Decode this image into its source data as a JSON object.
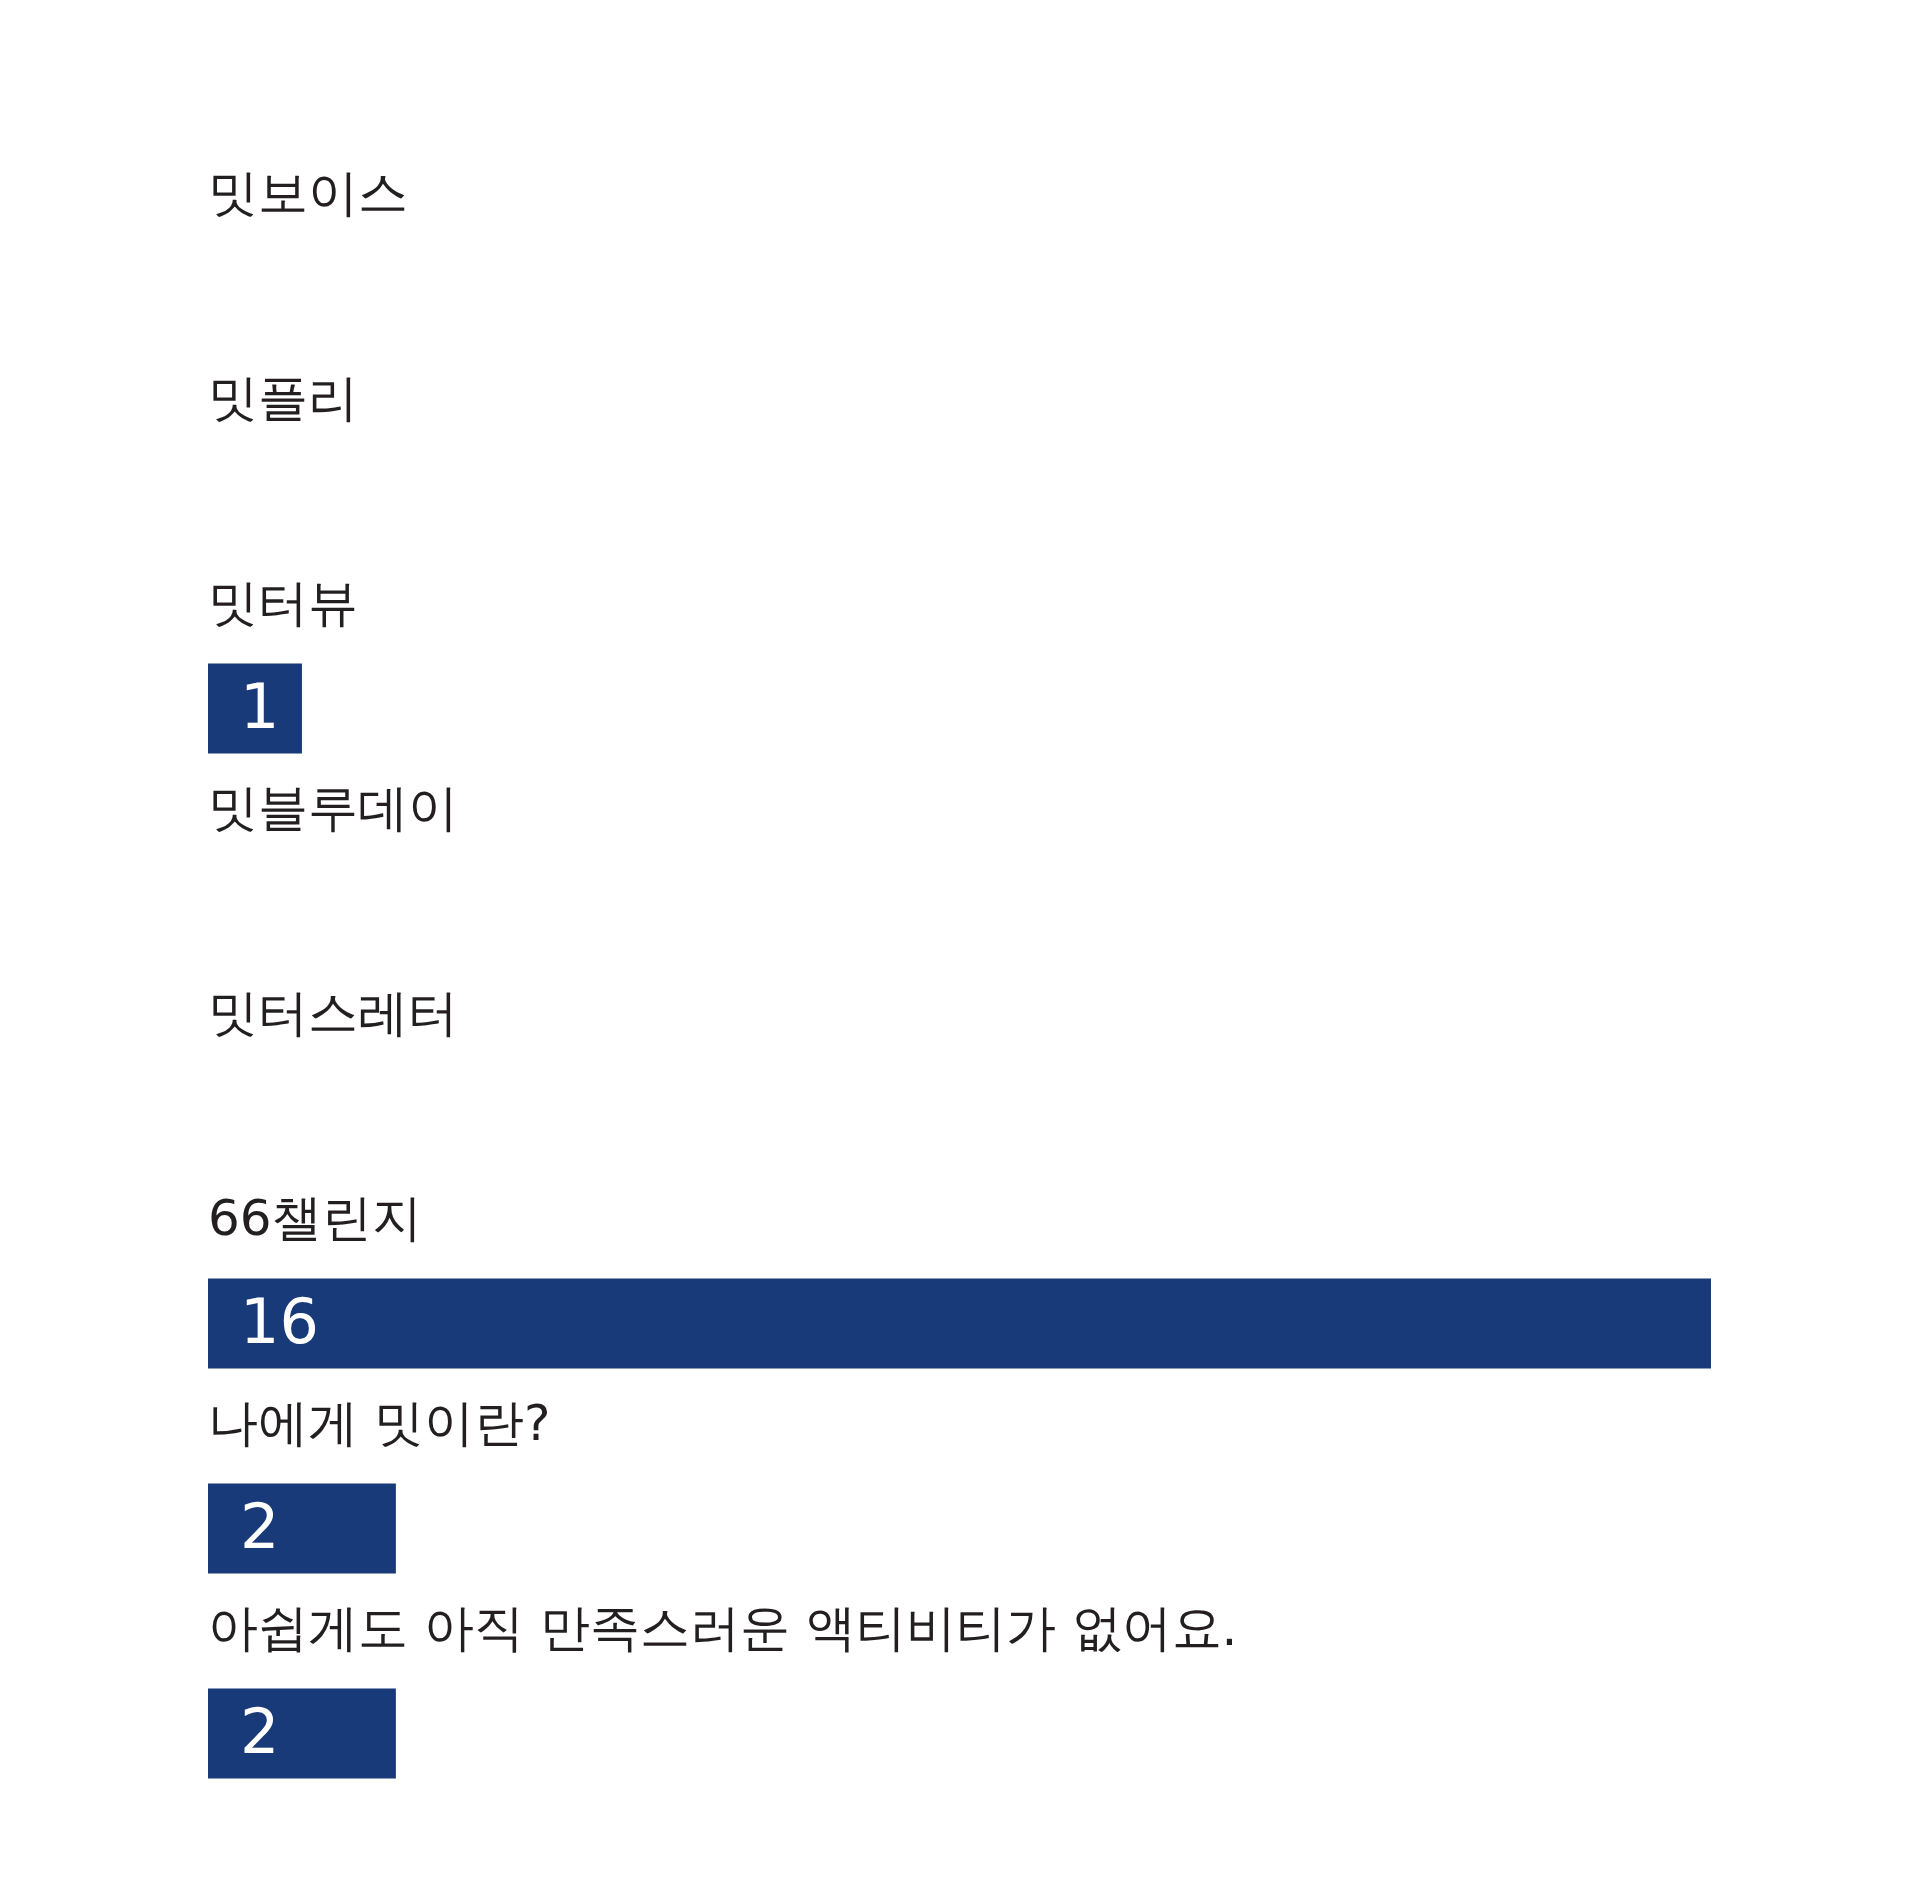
{
  "chart_data": {
    "type": "bar",
    "orientation": "horizontal",
    "categories": [
      "밋보이스",
      "밋플리",
      "밋터뷰",
      "밋블루데이",
      "밋터스레터",
      "66챌린지",
      "나에게 밋이란?",
      "아쉽게도 아직 만족스러운 액티비티가 없어요."
    ],
    "values": [
      0,
      0,
      1,
      0,
      0,
      16,
      2,
      2
    ],
    "value_labels": [
      null,
      null,
      "1",
      null,
      null,
      "16",
      "2",
      "2"
    ],
    "color": "#183a78"
  }
}
